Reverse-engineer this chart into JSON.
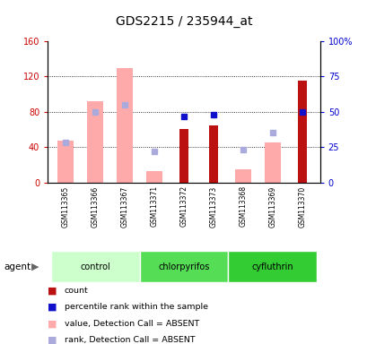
{
  "title": "GDS2215 / 235944_at",
  "samples": [
    "GSM113365",
    "GSM113366",
    "GSM113367",
    "GSM113371",
    "GSM113372",
    "GSM113373",
    "GSM113368",
    "GSM113369",
    "GSM113370"
  ],
  "count_values": [
    null,
    null,
    null,
    null,
    60,
    65,
    null,
    null,
    115
  ],
  "percentile_rank": [
    null,
    null,
    null,
    null,
    47,
    48,
    null,
    null,
    50
  ],
  "value_absent": [
    47,
    92,
    130,
    13,
    null,
    null,
    15,
    45,
    null
  ],
  "rank_absent": [
    28,
    50,
    55,
    22,
    null,
    null,
    23,
    35,
    null
  ],
  "ylim_left": [
    0,
    160
  ],
  "ylim_right": [
    0,
    100
  ],
  "yticks_left": [
    0,
    40,
    80,
    120,
    160
  ],
  "yticks_right": [
    0,
    25,
    50,
    75,
    100
  ],
  "ytick_labels_right": [
    "0",
    "25",
    "50",
    "75",
    "100%"
  ],
  "count_color": "#bb1111",
  "percentile_color": "#1111cc",
  "value_absent_color": "#ffaaaa",
  "rank_absent_color": "#aaaadd",
  "plot_bg": "#ffffff",
  "sample_bg": "#cccccc",
  "group_list": [
    {
      "name": "control",
      "indices": [
        0,
        1,
        2
      ],
      "color": "#ccffcc"
    },
    {
      "name": "chlorpyrifos",
      "indices": [
        3,
        4,
        5
      ],
      "color": "#55dd55"
    },
    {
      "name": "cyfluthrin",
      "indices": [
        6,
        7,
        8
      ],
      "color": "#33cc33"
    }
  ],
  "legend_items": [
    {
      "label": "count",
      "color": "#bb1111"
    },
    {
      "label": "percentile rank within the sample",
      "color": "#1111cc"
    },
    {
      "label": "value, Detection Call = ABSENT",
      "color": "#ffaaaa"
    },
    {
      "label": "rank, Detection Call = ABSENT",
      "color": "#aaaadd"
    }
  ],
  "agent_label": "agent"
}
